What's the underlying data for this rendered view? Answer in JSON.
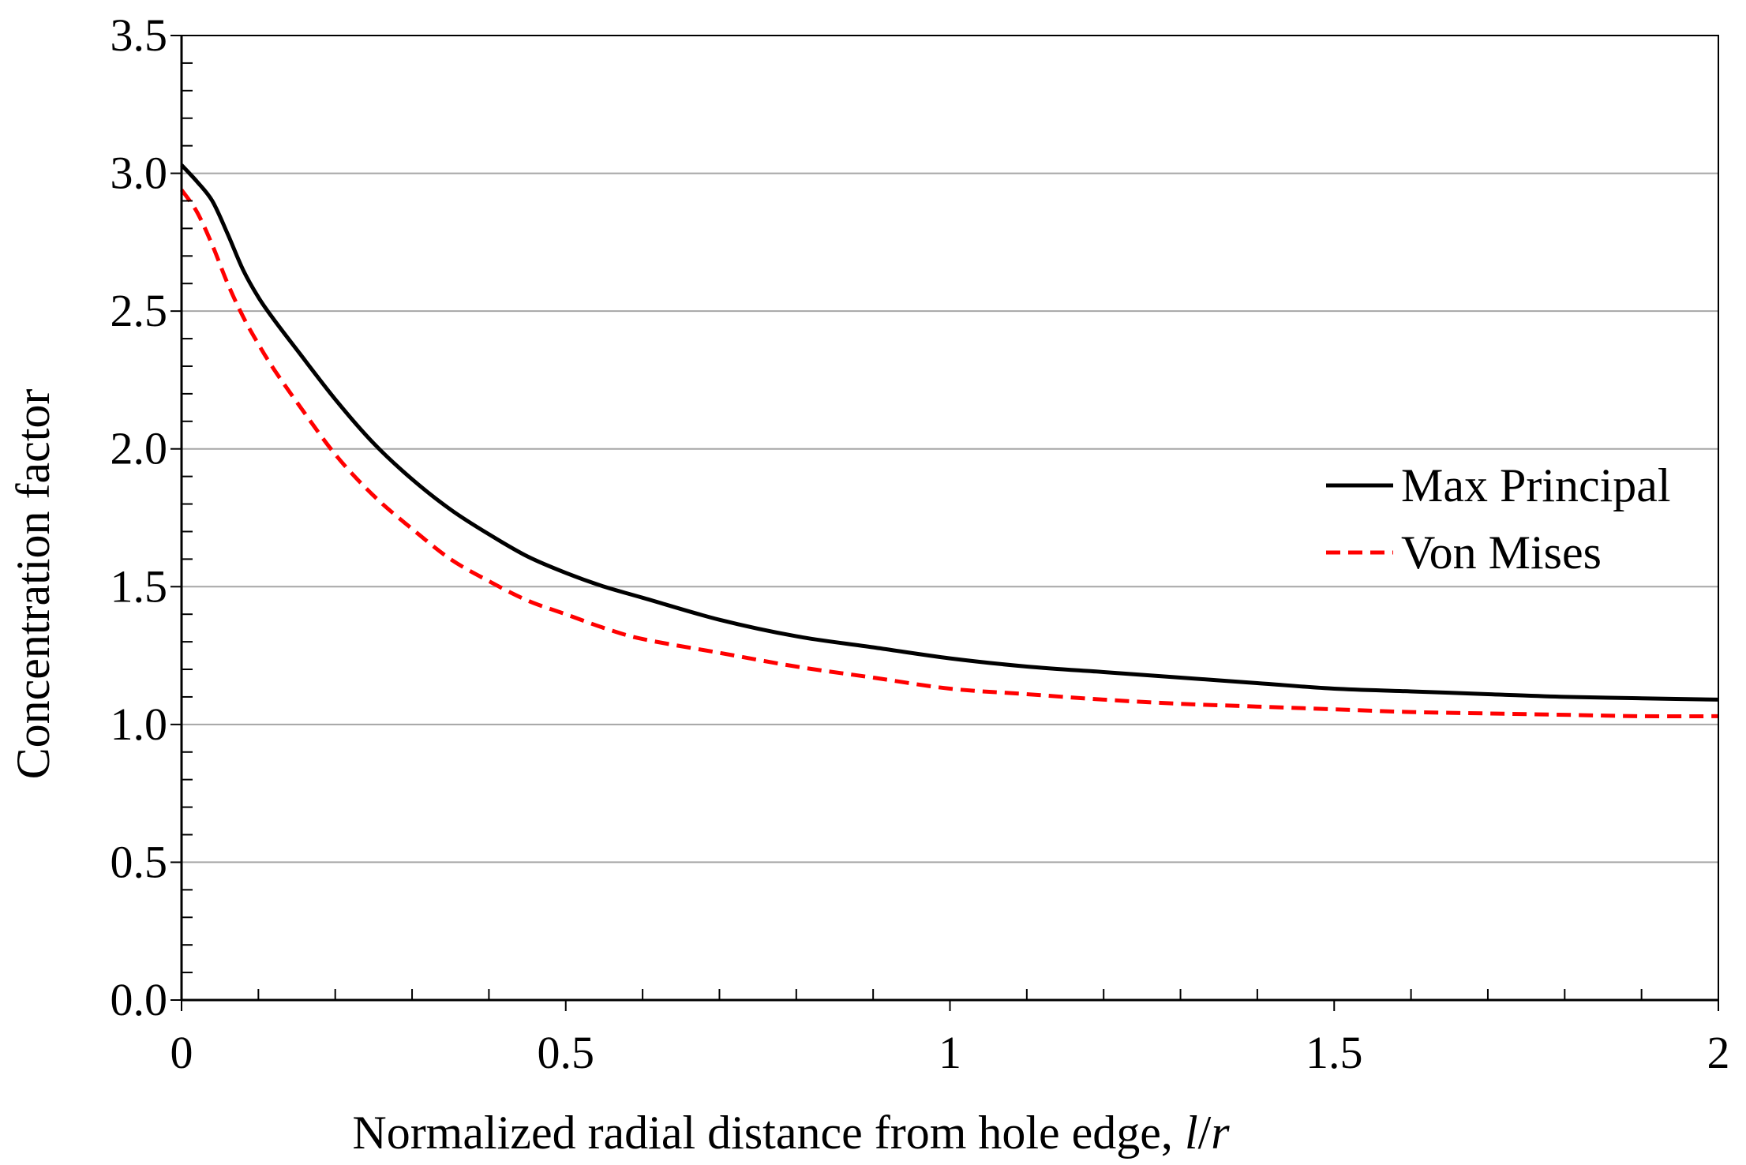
{
  "chart_data": {
    "type": "line",
    "title": "",
    "xlabel": "Normalized radial distance from hole edge, l/r",
    "xlabel_main": "Normalized radial distance from hole edge, ",
    "xlabel_var_l": "l",
    "xlabel_slash": "/",
    "xlabel_var_r": "r",
    "ylabel": "Concentration factor",
    "xlim": [
      0,
      2
    ],
    "ylim": [
      0,
      3.5
    ],
    "x_ticks": [
      "0",
      "0.5",
      "1",
      "1.5",
      "2"
    ],
    "y_ticks": [
      "0.0",
      "0.5",
      "1.0",
      "1.5",
      "2.0",
      "2.5",
      "3.0",
      "3.5"
    ],
    "grid": "horizontal",
    "legend_position": "right",
    "series": [
      {
        "name": "Max Principal",
        "color": "#000000",
        "style": "solid",
        "x": [
          0,
          0.02,
          0.04,
          0.06,
          0.08,
          0.1,
          0.12,
          0.15,
          0.2,
          0.25,
          0.3,
          0.35,
          0.4,
          0.45,
          0.5,
          0.55,
          0.6,
          0.7,
          0.8,
          0.9,
          1.0,
          1.1,
          1.2,
          1.3,
          1.4,
          1.5,
          1.6,
          1.7,
          1.8,
          1.9,
          2.0
        ],
        "y": [
          3.03,
          2.97,
          2.9,
          2.78,
          2.65,
          2.55,
          2.47,
          2.36,
          2.18,
          2.02,
          1.89,
          1.78,
          1.69,
          1.61,
          1.55,
          1.5,
          1.46,
          1.38,
          1.32,
          1.28,
          1.24,
          1.21,
          1.19,
          1.17,
          1.15,
          1.13,
          1.12,
          1.11,
          1.1,
          1.095,
          1.09
        ]
      },
      {
        "name": "Von Mises",
        "color": "#ff0000",
        "style": "dashed",
        "x": [
          0,
          0.02,
          0.04,
          0.06,
          0.08,
          0.1,
          0.12,
          0.15,
          0.2,
          0.25,
          0.3,
          0.35,
          0.4,
          0.45,
          0.5,
          0.55,
          0.6,
          0.7,
          0.8,
          0.9,
          1.0,
          1.1,
          1.2,
          1.3,
          1.4,
          1.5,
          1.6,
          1.7,
          1.8,
          1.9,
          2.0
        ],
        "y": [
          2.94,
          2.86,
          2.74,
          2.6,
          2.48,
          2.38,
          2.29,
          2.17,
          1.98,
          1.83,
          1.71,
          1.6,
          1.52,
          1.45,
          1.4,
          1.35,
          1.31,
          1.26,
          1.21,
          1.17,
          1.13,
          1.11,
          1.09,
          1.075,
          1.065,
          1.055,
          1.045,
          1.04,
          1.035,
          1.03,
          1.03
        ]
      }
    ]
  }
}
